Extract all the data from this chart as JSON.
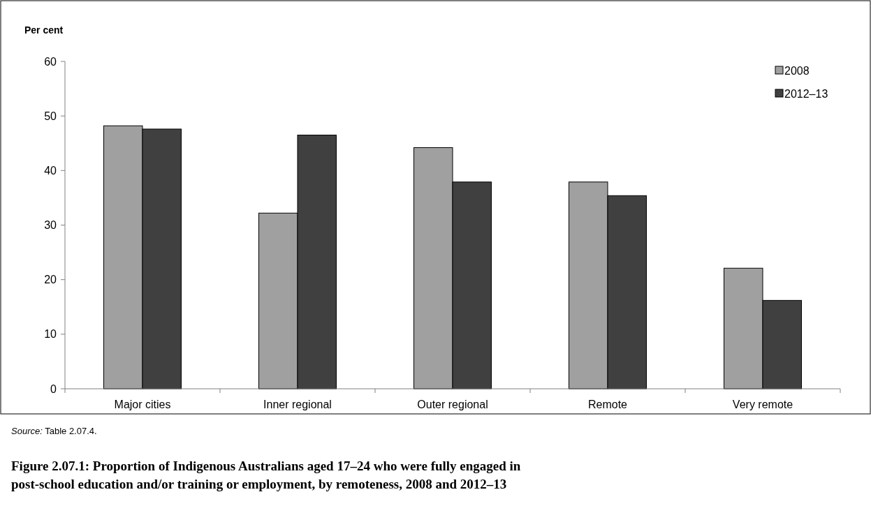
{
  "chart_data": {
    "type": "bar",
    "title": "Figure 2.07.1: Proportion of Indigenous Australians aged 17–24 who were fully engaged in post-school education and/or training or employment, by remoteness, 2008 and 2012–13",
    "ylabel": "Per cent",
    "annotations": [
      "Source: Table 2.07.4."
    ],
    "categories": [
      "Major cities",
      "Inner regional",
      "Outer regional",
      "Remote",
      "Very remote"
    ],
    "series": [
      {
        "name": "2008",
        "color": "#a0a0a0",
        "values": [
          48.2,
          32.2,
          44.2,
          37.9,
          22.1
        ]
      },
      {
        "name": "2012–13",
        "color": "#404040",
        "values": [
          47.6,
          46.5,
          37.9,
          35.4,
          16.2
        ]
      }
    ],
    "ylim": [
      0,
      60
    ],
    "yticks": [
      0,
      10,
      20,
      30,
      40,
      50,
      60
    ],
    "legend": "top right"
  }
}
